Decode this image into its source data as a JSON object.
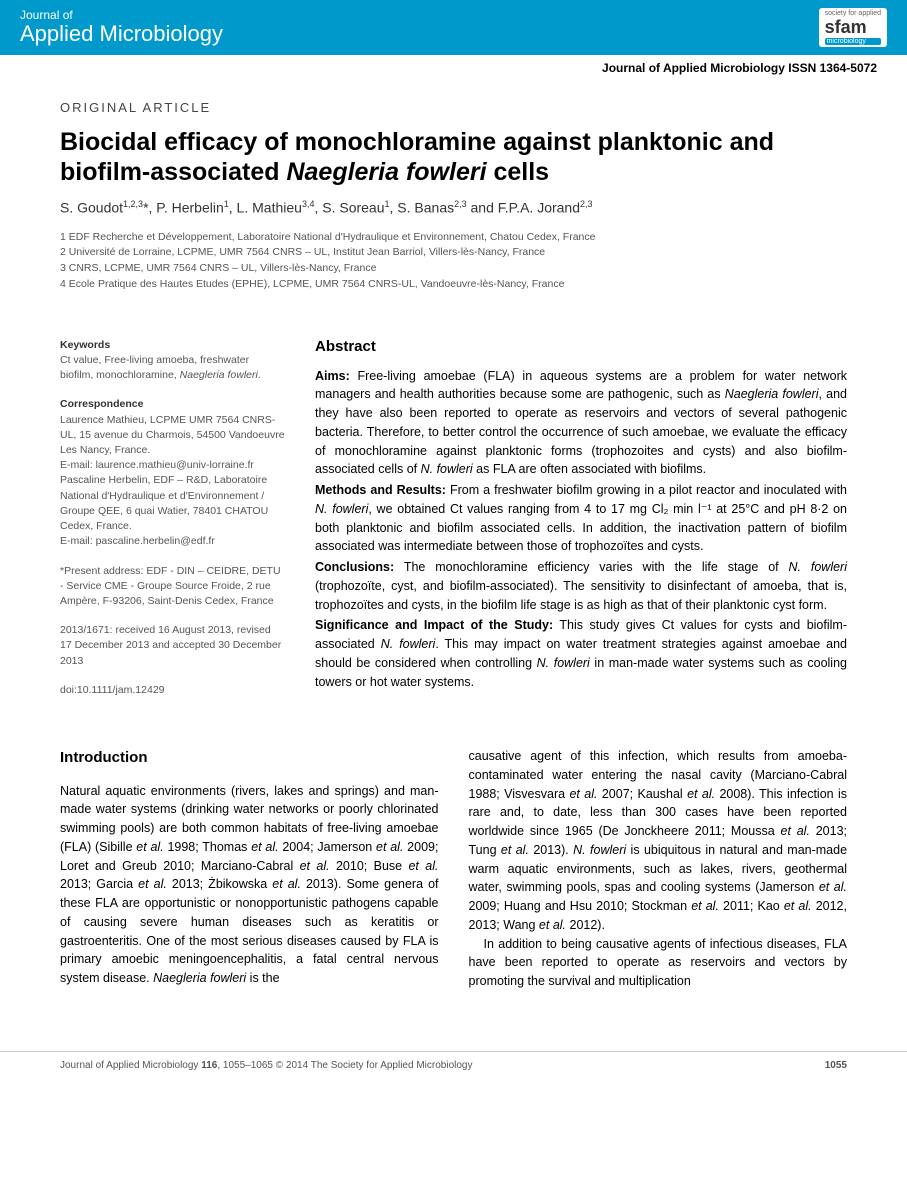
{
  "header": {
    "journal_line1": "Journal of",
    "journal_line2": "Applied Microbiology",
    "sfam_top": "society for applied",
    "sfam_main": "sfam",
    "sfam_sub": "microbiology",
    "issn_line": "Journal of Applied Microbiology ISSN 1364-5072"
  },
  "article": {
    "type": "ORIGINAL ARTICLE",
    "title_part1": "Biocidal efficacy of monochloramine against planktonic and biofilm-associated ",
    "title_italic": "Naegleria fowleri",
    "title_part2": " cells",
    "authors_html": "S. Goudot<sup>1,2,3</sup>*, P. Herbelin<sup>1</sup>, L. Mathieu<sup>3,4</sup>, S. Soreau<sup>1</sup>, S. Banas<sup>2,3</sup> and F.P.A. Jorand<sup>2,3</sup>",
    "affiliations": [
      "1  EDF Recherche et Développement, Laboratoire National d'Hydraulique et Environnement, Chatou Cedex, France",
      "2  Université de Lorraine, LCPME, UMR 7564 CNRS – UL, Institut Jean Barriol, Villers-lès-Nancy, France",
      "3  CNRS, LCPME, UMR 7564 CNRS – UL, Villers-lès-Nancy, France",
      "4  Ecole Pratique des Hautes Etudes (EPHE), LCPME, UMR 7564 CNRS-UL, Vandoeuvre-lès-Nancy, France"
    ]
  },
  "meta": {
    "keywords_label": "Keywords",
    "keywords_text": "Ct value, Free-living amoeba, freshwater biofilm, monochloramine, ",
    "keywords_italic": "Naegleria fowleri",
    "keywords_end": ".",
    "corr_label": "Correspondence",
    "corr_text": "Laurence Mathieu, LCPME UMR 7564 CNRS-UL, 15 avenue du Charmois, 54500 Vandoeuvre Les Nancy, France.\nE-mail: laurence.mathieu@univ-lorraine.fr\nPascaline Herbelin, EDF – R&D, Laboratoire National d'Hydraulique et d'Environnement / Groupe QEE, 6 quai Watier, 78401 CHATOU Cedex, France.\nE-mail: pascaline.herbelin@edf.fr",
    "present_addr": "*Present address: EDF - DIN – CEIDRE, DETU - Service CME - Groupe Source Froide, 2 rue Ampère, F-93206, Saint-Denis Cedex, France",
    "dates": "2013/1671: received 16 August 2013, revised 17 December 2013 and accepted 30 December 2013",
    "doi": "doi:10.1111/jam.12429"
  },
  "abstract": {
    "heading": "Abstract",
    "aims_label": "Aims:",
    "aims_text": " Free-living amoebae (FLA) in aqueous systems are a problem for water network managers and health authorities because some are pathogenic, such as ",
    "aims_italic1": "Naegleria fowleri",
    "aims_text2": ", and they have also been reported to operate as reservoirs and vectors of several pathogenic bacteria. Therefore, to better control the occurrence of such amoebae, we evaluate the efficacy of monochloramine against planktonic forms (trophozoites and cysts) and also biofilm-associated cells of ",
    "aims_italic2": "N. fowleri",
    "aims_text3": " as FLA are often associated with biofilms.",
    "methods_label": "Methods and Results:",
    "methods_text": " From a freshwater biofilm growing in a pilot reactor and inoculated with ",
    "methods_italic": "N. fowleri",
    "methods_text2": ", we obtained Ct values ranging from 4 to 17 mg Cl₂ min l⁻¹ at 25°C and pH 8·2 on both planktonic and biofilm associated cells. In addition, the inactivation pattern of biofilm associated was intermediate between those of trophozoïtes and cysts.",
    "concl_label": "Conclusions:",
    "concl_text": " The monochloramine efficiency varies with the life stage of ",
    "concl_italic": "N. fowleri",
    "concl_text2": " (trophozoïte, cyst, and biofilm-associated). The sensitivity to disinfectant of amoeba, that is, trophozoïtes and cysts, in the biofilm life stage is as high as that of their planktonic cyst form.",
    "sig_label": "Significance and Impact of the Study:",
    "sig_text": " This study gives Ct values for cysts and biofilm-associated ",
    "sig_italic": "N. fowleri",
    "sig_text2": ". This may impact on water treatment strategies against amoebae and should be considered when controlling ",
    "sig_italic2": "N. fowleri",
    "sig_text3": " in man-made water systems such as cooling towers or hot water systems."
  },
  "intro": {
    "heading": "Introduction",
    "col1_p1a": "Natural aquatic environments (rivers, lakes and springs) and man-made water systems (drinking water networks or poorly chlorinated swimming pools) are both common habitats of free-living amoebae (FLA) (Sibille ",
    "col1_p1b": " 1998; Thomas ",
    "col1_p1c": " 2004; Jamerson ",
    "col1_p1d": " 2009; Loret and Greub 2010; Marciano-Cabral ",
    "col1_p1e": " 2010; Buse ",
    "col1_p1f": " 2013; Garcia ",
    "col1_p1g": " 2013; Żbikowska ",
    "col1_p1h": " 2013). Some genera of these FLA are opportunistic or nonopportunistic pathogens capable of causing severe human diseases such as keratitis or gastroenteritis. One of the most serious diseases caused by FLA is primary amoebic meningoencephalitis, a fatal central nervous system disease. ",
    "col1_nf": "Naegleria fowleri",
    "col1_p1i": " is the",
    "col2_p1a": "causative agent of this infection, which results from amoeba-contaminated water entering the nasal cavity (Marciano-Cabral 1988; Visvesvara ",
    "col2_p1b": " 2007; Kaushal ",
    "col2_p1c": " 2008). This infection is rare and, to date, less than 300 cases have been reported worldwide since 1965 (De Jonckheere 2011; Moussa ",
    "col2_p1d": " 2013; Tung ",
    "col2_p1e": " 2013). ",
    "col2_nf": "N. fowleri",
    "col2_p1f": " is ubiquitous in natural and man-made warm aquatic environments, such as lakes, rivers, geothermal water, swimming pools, spas and cooling systems (Jamerson ",
    "col2_p1g": " 2009; Huang and Hsu 2010; Stockman ",
    "col2_p1h": " 2011; Kao ",
    "col2_p1i": " 2012, 2013; Wang ",
    "col2_p1j": " 2012).",
    "col2_p2": "In addition to being causative agents of infectious diseases, FLA have been reported to operate as reservoirs and vectors by promoting the survival and multiplication",
    "etal": "et al."
  },
  "footer": {
    "left_a": "Journal of Applied Microbiology ",
    "left_vol": "116",
    "left_b": ", 1055–1065 © 2014 The Society for Applied Microbiology",
    "page": "1055"
  },
  "colors": {
    "header_bg": "#0099cc",
    "text_body": "#000000",
    "text_meta": "#555555"
  }
}
